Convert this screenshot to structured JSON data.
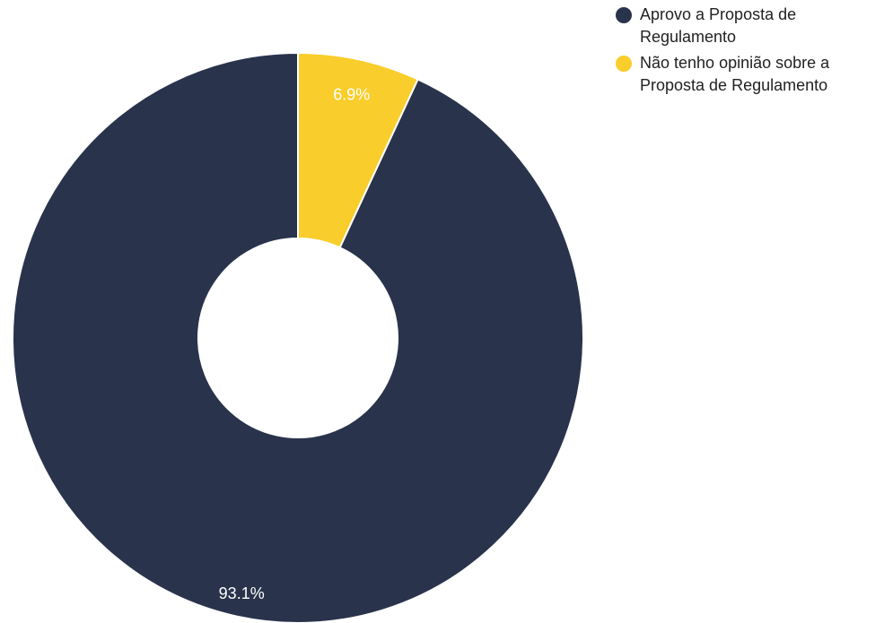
{
  "chart_data": {
    "type": "pie",
    "donut": true,
    "series": [
      {
        "name": "Aprovo a Proposta de Regulamento",
        "value": 93.1,
        "label": "93.1%",
        "color": "#29334b"
      },
      {
        "name": "Não tenho opinião sobre a Proposta de Regulamento",
        "value": 6.9,
        "label": "6.9%",
        "color": "#f9cd2b"
      }
    ],
    "legend_position": "top-right",
    "start_angle": "12 o'clock",
    "direction": "counter-clockwise"
  },
  "legend": {
    "items": [
      {
        "label": "Aprovo a Proposta de Regulamento",
        "color": "#29334b"
      },
      {
        "label": "Não tenho opinião sobre a Proposta de Regulamento",
        "color": "#f9cd2b"
      }
    ]
  }
}
